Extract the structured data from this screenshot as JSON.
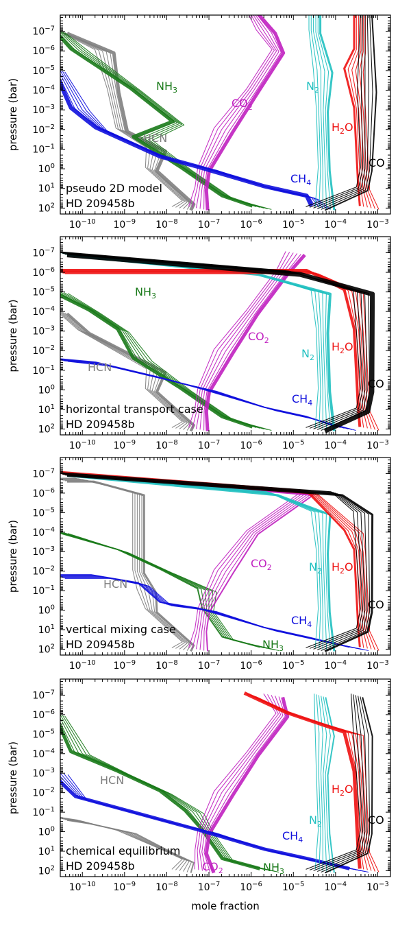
{
  "figure": {
    "xlabel": "mole fraction",
    "ylabel": "pressure (bar)",
    "planet": "HD 209458b"
  },
  "colors": {
    "HCN": "#808080",
    "NH3": "#1a7a1a",
    "CO2": "#c020c0",
    "N2": "#20c0c0",
    "H2O": "#ee1111",
    "CO": "#000000",
    "CH4": "#1010dd"
  },
  "chart_data": [
    {
      "type": "line",
      "title": "pseudo 2D model",
      "xscale": "log",
      "yscale": "log",
      "yinverted": true,
      "xlim": [
        3e-11,
        0.002
      ],
      "ylim": [
        200,
        1.5e-08
      ],
      "xticks": [
        "10^-10",
        "10^-9",
        "10^-8",
        "10^-7",
        "10^-6",
        "10^-5",
        "10^-4",
        "10^-3"
      ],
      "yticks": [
        "10^-7",
        "10^-6",
        "10^-5",
        "10^-4",
        "10^-3",
        "10^-2",
        "10^-1",
        "10^0",
        "10^1",
        "10^2"
      ],
      "labels": [
        {
          "name": "NH3",
          "pos": [
            0.47,
            0.6
          ]
        },
        {
          "name": "CO2",
          "pos": [
            0.74,
            0.5
          ]
        },
        {
          "name": "N2",
          "pos": [
            0.26,
            0.85
          ]
        },
        {
          "name": "H2O",
          "pos": [
            0.3,
            0.94
          ]
        },
        {
          "name": "HCN",
          "pos": [
            0.1,
            0.57
          ]
        },
        {
          "name": "CH4",
          "pos": [
            0.84,
            0.76
          ]
        },
        {
          "name": "CO",
          "pos": [
            0.1,
            0.99
          ]
        }
      ],
      "series": [
        {
          "name": "HCN",
          "x": [
            2e-08,
            3e-08,
            4e-09,
            5e-09,
            8e-10,
            5e-10,
            3e-10,
            3e-11
          ],
          "p": [
            100,
            50,
            1,
            0.1,
            0.01,
            0.0001,
            1e-06,
            1e-07
          ],
          "width": 5
        },
        {
          "name": "NH3",
          "x": [
            2e-06,
            3e-07,
            3e-08,
            3e-09,
            2e-08,
            2e-09,
            1e-10,
            3e-11
          ],
          "p": [
            100,
            30,
            1,
            0.03,
            0.005,
            0.0001,
            1e-06,
            1e-07
          ],
          "width": 5
        },
        {
          "name": "CO2",
          "x": [
            5e-08,
            6e-08,
            7e-08,
            2e-07,
            1e-06,
            4e-06,
            2e-06,
            1e-06
          ],
          "p": [
            100,
            10,
            1,
            0.01,
            0.0001,
            1e-06,
            1e-07,
            1e-08
          ],
          "width": 5
        },
        {
          "name": "CH4",
          "x": [
            5e-05,
            3e-05,
            3e-06,
            1e-07,
            1e-08,
            3e-10,
            1e-10,
            3e-11
          ],
          "p": [
            100,
            30,
            10,
            1,
            0.3,
            0.01,
            0.001,
            1e-05
          ],
          "width": 6
        },
        {
          "name": "N2",
          "x": [
            5e-05,
            5e-05,
            4.5e-05,
            4.5e-05,
            3e-05,
            3e-05
          ],
          "p": [
            100,
            1,
            0.001,
            1e-05,
            1e-07,
            1e-08
          ],
          "width": 3
        },
        {
          "name": "H2O",
          "x": [
            0.0007,
            0.0005,
            0.0004,
            0.0003,
            0.0004,
            0.0004
          ],
          "p": [
            100,
            10,
            0.001,
            1e-05,
            1e-06,
            1e-08
          ],
          "width": 3
        },
        {
          "name": "CO",
          "x": [
            3e-05,
            0.0004,
            0.0005,
            0.0005,
            0.0005
          ],
          "p": [
            100,
            10,
            1,
            0.0001,
            1e-08
          ],
          "width": 2
        }
      ]
    },
    {
      "type": "line",
      "title": "horizontal transport case",
      "xscale": "log",
      "yscale": "log",
      "yinverted": true,
      "xlim": [
        3e-11,
        0.002
      ],
      "ylim": [
        200,
        1.5e-08
      ],
      "xticks": [
        "10^-10",
        "10^-9",
        "10^-8",
        "10^-7",
        "10^-6",
        "10^-5",
        "10^-4",
        "10^-3"
      ],
      "yticks": [
        "10^-7",
        "10^-6",
        "10^-5",
        "10^-4",
        "10^-3",
        "10^-2",
        "10^-1",
        "10^0",
        "10^1",
        "10^2"
      ],
      "labels": [],
      "series": [
        {
          "name": "HCN",
          "x": [
            2e-08,
            3e-08,
            4e-09,
            5e-09,
            1e-10,
            3e-11
          ],
          "p": [
            100,
            50,
            1,
            0.1,
            0.001,
            0.0001
          ],
          "width": 4
        },
        {
          "name": "NH3",
          "x": [
            2e-06,
            3e-07,
            3e-08,
            3e-09,
            1e-09,
            2e-10,
            3e-11
          ],
          "p": [
            100,
            30,
            1,
            0.03,
            0.001,
            0.0001,
            1e-05
          ],
          "width": 5
        },
        {
          "name": "CO2",
          "x": [
            5e-08,
            6e-08,
            7e-08,
            2e-07,
            1e-06,
            5e-06,
            1e-05
          ],
          "p": [
            100,
            10,
            1,
            0.01,
            0.0001,
            1e-06,
            1e-07
          ],
          "width": 5
        },
        {
          "name": "CH4",
          "x": [
            0.0002,
            3e-05,
            3e-06,
            1e-07,
            1e-08,
            3e-10,
            3e-11
          ],
          "p": [
            100,
            30,
            10,
            1,
            0.3,
            0.05,
            0.03
          ],
          "width": 2
        },
        {
          "name": "N2",
          "x": [
            5e-05,
            5e-05,
            4.5e-05,
            4e-05,
            1e-06,
            3e-11
          ],
          "p": [
            100,
            1,
            0.001,
            1e-05,
            1e-06,
            1e-07
          ],
          "width": 4
        },
        {
          "name": "H2O",
          "x": [
            0.0007,
            0.0005,
            0.0004,
            0.0003,
            3e-05,
            3e-11
          ],
          "p": [
            100,
            10,
            0.001,
            1e-05,
            1e-06,
            1e-06
          ],
          "width": 4
        },
        {
          "name": "CO",
          "x": [
            3e-05,
            0.0004,
            0.0005,
            0.0004,
            1e-05,
            3e-11
          ],
          "p": [
            100,
            10,
            1,
            1e-05,
            1e-06,
            1e-07
          ],
          "width": 7
        }
      ]
    },
    {
      "type": "line",
      "title": "vertical mixing case",
      "xscale": "log",
      "yscale": "log",
      "yinverted": true,
      "xlim": [
        3e-11,
        0.002
      ],
      "ylim": [
        200,
        1.5e-08
      ],
      "xticks": [
        "10^-10",
        "10^-9",
        "10^-8",
        "10^-7",
        "10^-6",
        "10^-5",
        "10^-4",
        "10^-3"
      ],
      "yticks": [
        "10^-7",
        "10^-6",
        "10^-5",
        "10^-4",
        "10^-3",
        "10^-2",
        "10^-1",
        "10^0",
        "10^1",
        "10^2"
      ],
      "labels": [],
      "series": [
        {
          "name": "HCN",
          "x": [
            2e-08,
            3e-08,
            4e-09,
            3e-09,
            2e-09,
            2e-09,
            1e-10,
            3e-11
          ],
          "p": [
            100,
            50,
            1,
            0.1,
            0.01,
            1e-06,
            2e-07,
            2e-07
          ],
          "width": 3
        },
        {
          "name": "NH3",
          "x": [
            3e-06,
            3e-07,
            1e-07,
            1e-07,
            1e-08,
            1e-09,
            3e-11
          ],
          "p": [
            100,
            30,
            1,
            0.1,
            0.01,
            0.001,
            0.0001
          ],
          "width": 2
        },
        {
          "name": "CO2",
          "x": [
            5e-08,
            6e-08,
            7e-08,
            2e-07,
            1e-06,
            2e-05,
            3e-11
          ],
          "p": [
            100,
            10,
            1,
            0.01,
            0.0001,
            1e-06,
            1e-07
          ],
          "width": 2
        },
        {
          "name": "CH4",
          "x": [
            0.0004,
            3e-05,
            3e-06,
            1e-07,
            1e-08,
            3e-09,
            3e-10,
            3e-11
          ],
          "p": [
            100,
            30,
            10,
            1,
            0.5,
            0.05,
            0.02,
            0.02
          ],
          "width": 2
        },
        {
          "name": "N2",
          "x": [
            5e-05,
            5e-05,
            4.5e-05,
            4e-05,
            3e-06,
            3e-11
          ],
          "p": [
            100,
            1,
            0.001,
            1e-05,
            1e-06,
            1e-07
          ],
          "width": 3
        },
        {
          "name": "H2O",
          "x": [
            0.0007,
            0.0005,
            0.0004,
            0.0003,
            3e-05,
            3e-11
          ],
          "p": [
            100,
            10,
            0.001,
            0.0001,
            1e-06,
            1e-07
          ],
          "width": 3
        },
        {
          "name": "CO",
          "x": [
            3e-05,
            0.0004,
            0.0005,
            0.0004,
            0.0001,
            3e-11
          ],
          "p": [
            100,
            10,
            1,
            1e-05,
            1e-06,
            1e-07
          ],
          "width": 3
        }
      ]
    },
    {
      "type": "line",
      "title": "chemical equilibrium",
      "xscale": "log",
      "yscale": "log",
      "yinverted": true,
      "xlim": [
        3e-11,
        0.002
      ],
      "ylim": [
        200,
        1.5e-08
      ],
      "xticks": [
        "10^-10",
        "10^-9",
        "10^-8",
        "10^-7",
        "10^-6",
        "10^-5",
        "10^-4",
        "10^-3"
      ],
      "yticks": [
        "10^-7",
        "10^-6",
        "10^-5",
        "10^-4",
        "10^-3",
        "10^-2",
        "10^-1",
        "10^0",
        "10^1",
        "10^2"
      ],
      "labels": [],
      "series": [
        {
          "name": "HCN",
          "x": [
            2e-08,
            3e-08,
            1e-08,
            1e-09,
            1e-10,
            3e-11
          ],
          "p": [
            100,
            30,
            10,
            1,
            0.3,
            0.2
          ],
          "width": 2
        },
        {
          "name": "NH3",
          "x": [
            3e-06,
            3e-07,
            1e-07,
            5e-08,
            1e-08,
            1e-09,
            1e-10,
            3e-11
          ],
          "p": [
            100,
            30,
            1,
            0.1,
            0.01,
            0.001,
            0.0001,
            1e-06
          ],
          "width": 5
        },
        {
          "name": "CO2",
          "x": [
            7e-08,
            6e-08,
            7e-08,
            2e-07,
            1e-06,
            5e-06,
            3e-06
          ],
          "p": [
            100,
            10,
            1,
            0.01,
            0.0001,
            1e-06,
            1e-07
          ],
          "width": 5
        },
        {
          "name": "CH4",
          "x": [
            0.0004,
            3e-05,
            3e-06,
            1e-07,
            1e-08,
            1e-10,
            3e-11
          ],
          "p": [
            100,
            30,
            10,
            1,
            0.3,
            0.02,
            0.001
          ],
          "width": 5
        },
        {
          "name": "N2",
          "x": [
            5e-05,
            5e-05,
            4.5e-05,
            5e-05,
            4e-05
          ],
          "p": [
            100,
            1,
            0.001,
            1e-05,
            1e-07
          ],
          "width": 2
        },
        {
          "name": "H2O",
          "x": [
            0.0007,
            0.0005,
            0.0004,
            0.0003,
            1e-05,
            1e-06
          ],
          "p": [
            100,
            10,
            0.001,
            1e-05,
            1e-06,
            1e-07
          ],
          "width": 5
        },
        {
          "name": "CO",
          "x": [
            3e-05,
            0.0004,
            0.0005,
            0.0004,
            0.0003
          ],
          "p": [
            100,
            10,
            1,
            1e-05,
            1e-07
          ],
          "width": 2
        }
      ]
    }
  ],
  "panel_labels": [
    {
      "line1": "pseudo 2D model",
      "line2": "HD 209458b"
    },
    {
      "line1": "horizontal transport case",
      "line2": "HD 209458b"
    },
    {
      "line1": "vertical mixing case",
      "line2": "HD 209458b"
    },
    {
      "line1": "chemical equilibrium",
      "line2": "HD 209458b"
    }
  ]
}
